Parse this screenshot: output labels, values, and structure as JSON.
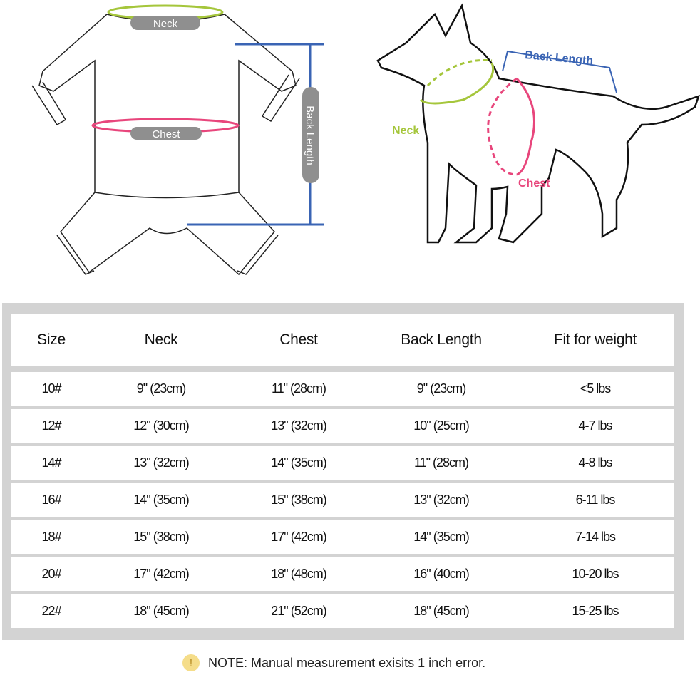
{
  "garment_labels": {
    "neck": "Neck",
    "chest": "Chest",
    "back_length": "Back Length"
  },
  "dog_labels": {
    "neck": "Neck",
    "chest": "Chest",
    "back_length": "Back Length"
  },
  "colors": {
    "neck": "#a5c63b",
    "chest": "#e8467c",
    "back_length": "#3a64b4",
    "label_pill": "#8f8f8f",
    "table_frame": "#d3d3d3"
  },
  "table": {
    "headers": [
      "Size",
      "Neck",
      "Chest",
      "Back Length",
      "Fit for weight"
    ],
    "rows": [
      [
        "10#",
        "9\" (23cm)",
        "11\" (28cm)",
        "9\" (23cm)",
        "<5 lbs"
      ],
      [
        "12#",
        "12\" (30cm)",
        "13\" (32cm)",
        "10\" (25cm)",
        "4-7 lbs"
      ],
      [
        "14#",
        "13\" (32cm)",
        "14\" (35cm)",
        "11\" (28cm)",
        "4-8  lbs"
      ],
      [
        "16#",
        "14\" (35cm)",
        "15\" (38cm)",
        "13\" (32cm)",
        "6-11  lbs"
      ],
      [
        "18#",
        "15\" (38cm)",
        "17\" (42cm)",
        "14\" (35cm)",
        "7-14  lbs"
      ],
      [
        "20#",
        "17\" (42cm)",
        "18\" (48cm)",
        "16\" (40cm)",
        "10-20 lbs"
      ],
      [
        "22#",
        "18\" (45cm)",
        "21\" (52cm)",
        "18\" (45cm)",
        "15-25 lbs"
      ]
    ]
  },
  "note": {
    "icon": "warning-icon",
    "text": "NOTE: Manual measurement exisits 1 inch error."
  }
}
